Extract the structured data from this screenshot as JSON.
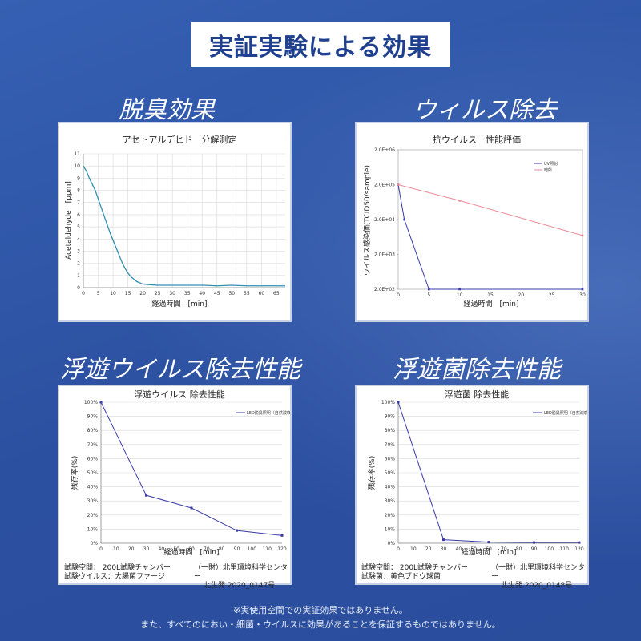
{
  "header": {
    "title": "実証実験による効果"
  },
  "sections": {
    "deodor": "脱臭効果",
    "virus_removal": "ウィルス除去",
    "airborne_virus": "浮遊ウイルス除去性能",
    "airborne_bacteria": "浮遊菌除去性能"
  },
  "footers": {
    "virus_test_space": "試験空間： 200L試験チャンバー",
    "virus_test_subject": "試験ウイルス：大腸菌ファージ",
    "virus_org": "（一財）北里環境科学センター",
    "virus_report": "北生発 2020_0147号",
    "bact_test_space": "試験空間： 200L試験チャンバー",
    "bact_test_subject": "試験菌：黄色ブドウ球菌",
    "bact_org": "（一財）北里環境科学センター",
    "bact_report": "北生発 2020_0148号"
  },
  "notes": {
    "line1": "※実使用空間での実証効果ではありません。",
    "line2": "また、すべてのにおい・細菌・ウイルスに効果があることを保証するものではありません。"
  },
  "colors": {
    "background": "#2f55a6",
    "header_text": "#1f3f8f",
    "teal_line": "#2e8fb0",
    "navy_line": "#3a3aa8",
    "pink_line": "#e88a96"
  },
  "chart_data": [
    {
      "type": "line",
      "title": "アセトアルデヒド　分解測定",
      "xlabel": "経過時間　[min]",
      "ylabel": "Acetaldehyde　[ppm]",
      "xlim": [
        0,
        68
      ],
      "ylim": [
        0,
        11
      ],
      "xticks": [
        0,
        5,
        10,
        15,
        20,
        25,
        30,
        35,
        40,
        45,
        50,
        55,
        60,
        65
      ],
      "yticks": [
        0,
        1,
        2,
        3,
        4,
        5,
        6,
        7,
        8,
        9,
        10,
        11
      ],
      "grid": true,
      "series": [
        {
          "x": [
            0,
            1,
            2,
            3,
            4,
            5,
            6,
            7,
            8,
            9,
            10,
            11,
            12,
            13,
            14,
            15,
            16,
            17,
            18,
            19,
            20,
            22,
            25,
            30,
            35,
            40,
            45,
            50,
            55,
            60,
            65,
            68
          ],
          "y": [
            10,
            9.6,
            9.0,
            8.5,
            8.0,
            7.3,
            6.6,
            5.9,
            5.2,
            4.5,
            3.9,
            3.3,
            2.7,
            2.1,
            1.6,
            1.2,
            0.9,
            0.7,
            0.5,
            0.4,
            0.3,
            0.25,
            0.2,
            0.2,
            0.2,
            0.2,
            0.15,
            0.2,
            0.15,
            0.15,
            0.15,
            0.15
          ]
        }
      ]
    },
    {
      "type": "line",
      "title": "抗ウイルス　性能評価",
      "xlabel": "経過時間　[min]",
      "ylabel": "ウイルス感染価(TCID50/sample)",
      "yscale": "log",
      "xlim": [
        0,
        30
      ],
      "ylim": [
        200,
        2000000
      ],
      "xticks": [
        0,
        5,
        10,
        15,
        20,
        25,
        30
      ],
      "ytick_labels": [
        "2.0E+02",
        "2.0E+03",
        "2.0E+04",
        "2.0E+05",
        "2.0E+06"
      ],
      "legend": "top-right",
      "series": [
        {
          "name": "UV照射",
          "x": [
            0,
            1,
            5,
            10,
            30
          ],
          "y": [
            200000,
            20000,
            200,
            200,
            200
          ]
        },
        {
          "name": "暗所",
          "x": [
            0,
            10,
            30
          ],
          "y": [
            200000,
            70000,
            7000
          ]
        }
      ]
    },
    {
      "type": "line",
      "title": "浮遊ウイルス 除去性能",
      "xlabel": "経過時間　[min]",
      "ylabel": "残存率(%)",
      "xlim": [
        0,
        120
      ],
      "ylim": [
        0,
        100
      ],
      "xticks": [
        0,
        10,
        20,
        30,
        40,
        50,
        60,
        70,
        80,
        90,
        100,
        110,
        120
      ],
      "yticks": [
        0,
        10,
        20,
        30,
        40,
        50,
        60,
        70,
        80,
        90,
        100
      ],
      "legend": "top-right",
      "series": [
        {
          "name": "LED脱臭照明（自然減衰との比較）",
          "x": [
            0,
            30,
            60,
            90,
            120
          ],
          "y": [
            100,
            34,
            25,
            9,
            5.5
          ]
        }
      ]
    },
    {
      "type": "line",
      "title": "浮遊菌 除去性能",
      "xlabel": "経過時間　[min]",
      "ylabel": "残存率(%)",
      "xlim": [
        0,
        120
      ],
      "ylim": [
        0,
        100
      ],
      "xticks": [
        0,
        10,
        20,
        30,
        40,
        50,
        60,
        70,
        80,
        90,
        100,
        110,
        120
      ],
      "yticks": [
        0,
        10,
        20,
        30,
        40,
        50,
        60,
        70,
        80,
        90,
        100
      ],
      "legend": "top-right",
      "series": [
        {
          "name": "LED脱臭照明（自然減衰との比較）",
          "x": [
            0,
            30,
            60,
            90,
            120
          ],
          "y": [
            100,
            2.5,
            0.8,
            0.5,
            0.5
          ]
        }
      ]
    }
  ]
}
